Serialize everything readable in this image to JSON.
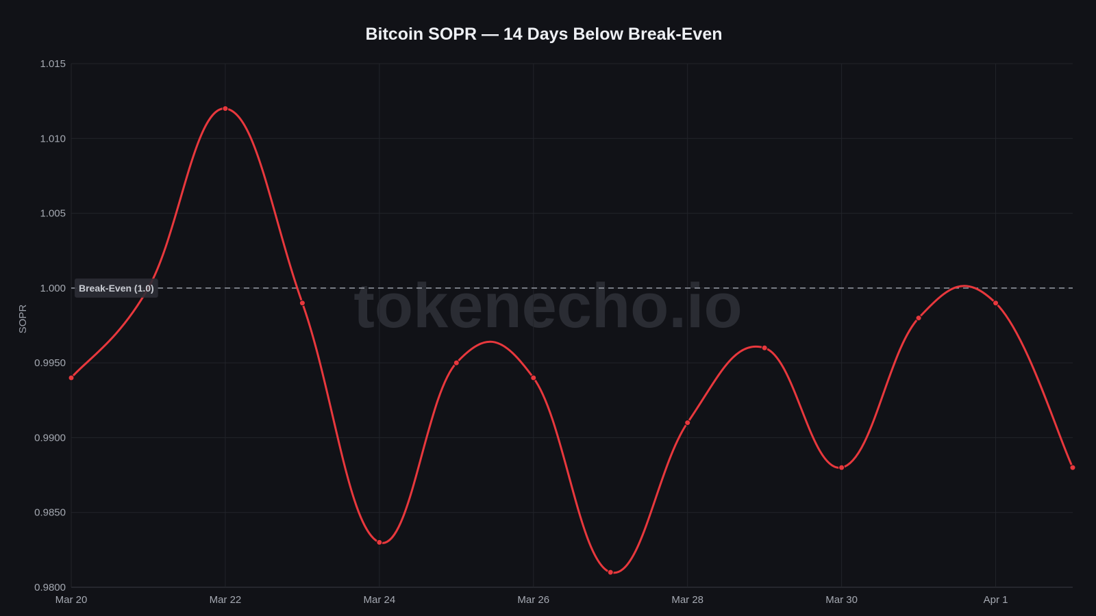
{
  "chart_data": {
    "type": "line",
    "title": "Bitcoin SOPR — 14 Days Below Break-Even",
    "xlabel": "",
    "ylabel": "SOPR",
    "x": [
      "Mar 20",
      "Mar 21",
      "Mar 22",
      "Mar 23",
      "Mar 24",
      "Mar 25",
      "Mar 26",
      "Mar 27",
      "Mar 28",
      "Mar 29",
      "Mar 30",
      "Mar 31",
      "Apr 1",
      "Apr 2"
    ],
    "x_tick_labels": [
      "Mar 20",
      "Mar 22",
      "Mar 24",
      "Mar 26",
      "Mar 28",
      "Mar 30",
      "Apr 1"
    ],
    "series": [
      {
        "values": [
          0.994,
          1.0,
          1.012,
          0.999,
          0.983,
          0.995,
          0.994,
          0.981,
          0.991,
          0.996,
          0.988,
          0.998,
          0.999,
          0.988
        ],
        "color": "#e8383d"
      }
    ],
    "ylim": [
      0.98,
      1.015
    ],
    "y_tick_labels": [
      "1.015",
      "1.010",
      "1.005",
      "1.000",
      "0.9950",
      "0.9900",
      "0.9850",
      "0.9800"
    ],
    "y_ticks": [
      1.015,
      1.01,
      1.005,
      1.0,
      0.995,
      0.99,
      0.985,
      0.98
    ],
    "grid": true,
    "reference_line": {
      "value": 1.0,
      "label": "Break-Even (1.0)",
      "style": "dashed",
      "color": "#9a9ea8"
    },
    "watermark": "tokenecho.io"
  }
}
